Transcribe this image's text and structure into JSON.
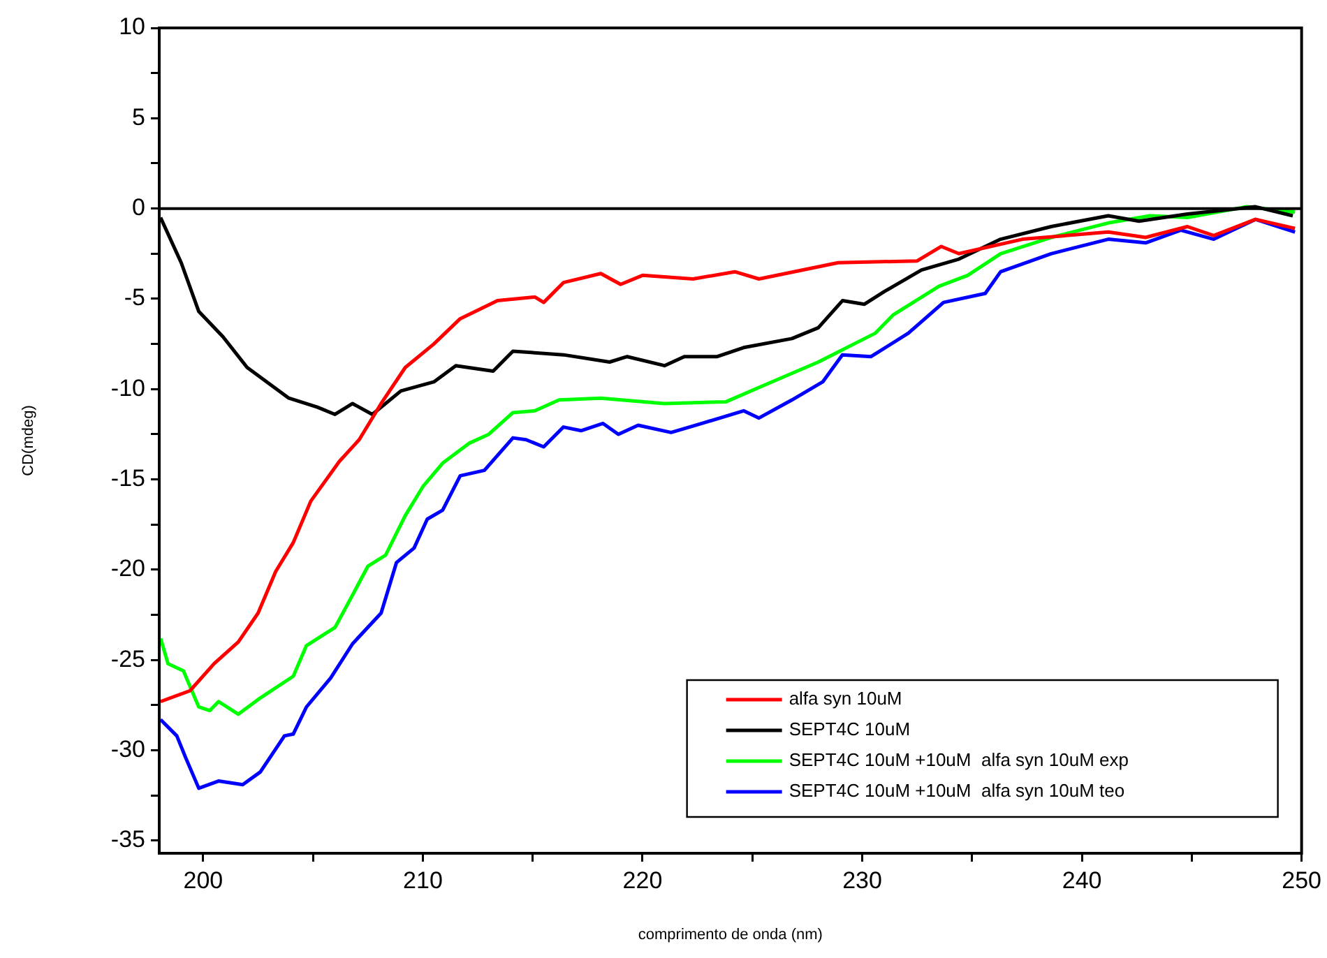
{
  "chart_data": {
    "type": "line",
    "xlabel": "comprimento de onda (nm)",
    "ylabel": "CD(mdeg)",
    "xlim": [
      198,
      250
    ],
    "ylim": [
      -35.7,
      10
    ],
    "xticks": [
      200,
      {
        "value": 205,
        "label": null
      },
      210,
      {
        "value": 215,
        "label": null
      },
      220,
      {
        "value": 225,
        "label": null
      },
      230,
      {
        "value": 235,
        "label": null
      },
      240,
      {
        "value": 245,
        "label": null
      },
      250
    ],
    "yticks": [
      -35,
      {
        "value": -32.5,
        "label": null
      },
      -30,
      {
        "value": -27.5,
        "label": null
      },
      -25,
      {
        "value": -22.5,
        "label": null
      },
      -20,
      {
        "value": -17.5,
        "label": null
      },
      -15,
      {
        "value": -12.5,
        "label": null
      },
      -10,
      {
        "value": -7.5,
        "label": null
      },
      -5,
      {
        "value": -2.5,
        "label": null
      },
      0,
      {
        "value": 2.5,
        "label": null
      },
      5,
      {
        "value": 7.5,
        "label": null
      },
      10
    ],
    "grid": false,
    "legend": "bottom right",
    "marker": "none",
    "line_style": "solid",
    "ref_lines": [
      {
        "axis": "y",
        "value": 0,
        "color": "#000000"
      }
    ],
    "series": [
      {
        "name": "alfa syn 10uM",
        "color": "#ff0000",
        "x": [
          198.06,
          199.4,
          200.5,
          201.6,
          202.5,
          203.3,
          204.1,
          204.9,
          206.2,
          207.1,
          208.1,
          209.2,
          210.5,
          211.7,
          213.4,
          215.1,
          215.5,
          216.4,
          218.1,
          219.0,
          220.0,
          222.3,
          224.2,
          225.3,
          228.9,
          232.5,
          233.6,
          234.4,
          237.3,
          241.2,
          242.9,
          244.8,
          246.0,
          247.9,
          249.7
        ],
        "values": [
          -27.3,
          -26.7,
          -25.2,
          -24.0,
          -22.4,
          -20.1,
          -18.5,
          -16.2,
          -14.0,
          -12.8,
          -10.8,
          -8.8,
          -7.5,
          -6.1,
          -5.1,
          -4.9,
          -5.2,
          -4.1,
          -3.6,
          -4.2,
          -3.7,
          -3.9,
          -3.5,
          -3.9,
          -3.0,
          -2.9,
          -2.1,
          -2.5,
          -1.7,
          -1.3,
          -1.6,
          -1.0,
          -1.5,
          -0.6,
          -1.1
        ]
      },
      {
        "name": "SEPT4C 10uM",
        "color": "#000000",
        "x": [
          198.06,
          199.0,
          199.8,
          200.9,
          202.0,
          203.9,
          205.2,
          206.0,
          206.8,
          207.7,
          209.0,
          210.5,
          211.5,
          213.2,
          214.1,
          216.4,
          218.5,
          219.3,
          221.0,
          221.9,
          223.4,
          224.6,
          226.8,
          228.0,
          229.1,
          230.1,
          231.0,
          232.7,
          234.4,
          236.3,
          238.6,
          241.2,
          242.6,
          244.8,
          247.9,
          249.6
        ],
        "values": [
          -0.5,
          -3.0,
          -5.7,
          -7.1,
          -8.8,
          -10.5,
          -11.0,
          -11.4,
          -10.8,
          -11.4,
          -10.1,
          -9.6,
          -8.7,
          -9.0,
          -7.9,
          -8.1,
          -8.5,
          -8.2,
          -8.7,
          -8.2,
          -8.2,
          -7.7,
          -7.2,
          -6.6,
          -5.1,
          -5.3,
          -4.6,
          -3.4,
          -2.8,
          -1.7,
          -1.0,
          -0.4,
          -0.7,
          -0.3,
          0.1,
          -0.4
        ]
      },
      {
        "name": "SEPT4C 10uM +10uM  alfa syn 10uM exp",
        "color": "#00ff00",
        "x": [
          198.06,
          198.4,
          199.1,
          199.8,
          200.3,
          200.7,
          201.6,
          202.6,
          204.1,
          204.7,
          206.0,
          206.8,
          207.5,
          208.3,
          209.2,
          210.0,
          210.9,
          212.1,
          213.0,
          214.1,
          215.1,
          216.2,
          218.1,
          221.0,
          223.8,
          225.7,
          228.0,
          230.6,
          231.4,
          233.5,
          234.8,
          236.3,
          238.6,
          241.2,
          243.1,
          244.8,
          247.5,
          249.7
        ],
        "values": [
          -23.8,
          -25.2,
          -25.6,
          -27.6,
          -27.8,
          -27.3,
          -28.0,
          -27.1,
          -25.9,
          -24.2,
          -23.2,
          -21.4,
          -19.8,
          -19.2,
          -17.0,
          -15.4,
          -14.1,
          -13.0,
          -12.5,
          -11.3,
          -11.2,
          -10.6,
          -10.5,
          -10.8,
          -10.7,
          -9.7,
          -8.5,
          -6.9,
          -5.9,
          -4.3,
          -3.7,
          -2.5,
          -1.6,
          -0.8,
          -0.4,
          -0.5,
          0.1,
          -0.2
        ]
      },
      {
        "name": "SEPT4C 10uM +10uM  alfa syn 10uM teo",
        "color": "#0000ff",
        "x": [
          198.06,
          198.8,
          199.2,
          199.8,
          200.7,
          201.8,
          202.6,
          203.7,
          204.1,
          204.7,
          205.8,
          206.8,
          208.1,
          208.8,
          209.6,
          210.2,
          210.9,
          211.7,
          212.8,
          214.1,
          214.7,
          215.5,
          216.4,
          217.2,
          218.2,
          218.9,
          219.8,
          221.3,
          222.7,
          224.6,
          225.3,
          226.8,
          228.2,
          229.1,
          230.4,
          232.1,
          233.7,
          235.6,
          236.3,
          238.6,
          241.2,
          242.9,
          244.5,
          246.0,
          247.9,
          249.7
        ],
        "values": [
          -28.3,
          -29.2,
          -30.4,
          -32.1,
          -31.7,
          -31.9,
          -31.2,
          -29.2,
          -29.1,
          -27.6,
          -26.0,
          -24.1,
          -22.4,
          -19.6,
          -18.8,
          -17.2,
          -16.7,
          -14.8,
          -14.5,
          -12.7,
          -12.8,
          -13.2,
          -12.1,
          -12.3,
          -11.9,
          -12.5,
          -12.0,
          -12.4,
          -11.9,
          -11.2,
          -11.6,
          -10.6,
          -9.6,
          -8.1,
          -8.2,
          -6.9,
          -5.2,
          -4.7,
          -3.5,
          -2.5,
          -1.7,
          -1.9,
          -1.2,
          -1.7,
          -0.6,
          -1.3
        ]
      }
    ]
  }
}
